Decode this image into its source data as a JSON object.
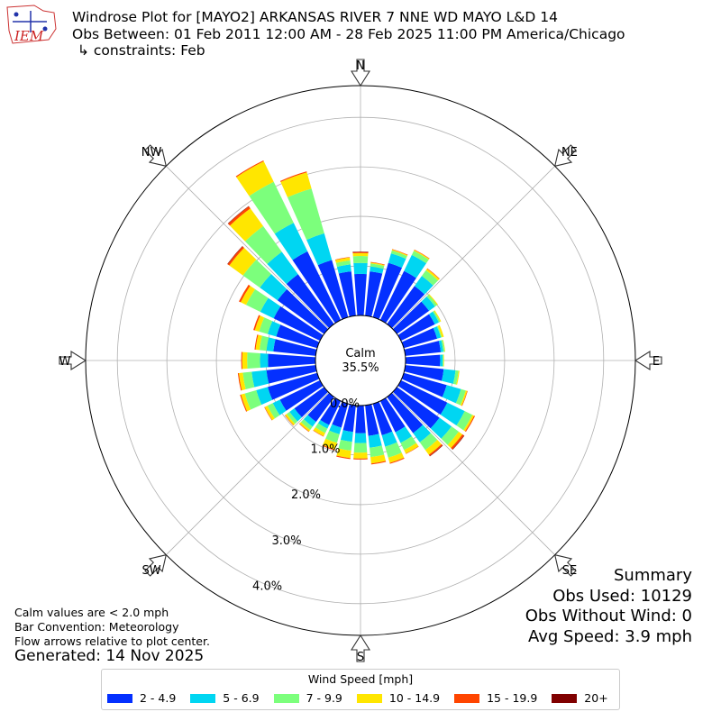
{
  "header": {
    "logo_text": "IEM",
    "title": "Windrose Plot for [MAYO2] ARKANSAS RIVER 7 NNE WD MAYO L&D 14",
    "obs_between": "Obs Between: 01 Feb 2011 12:00 AM - 28 Feb 2025 11:00 PM America/Chicago",
    "constraints": "↳ constraints: Feb"
  },
  "chart_data": {
    "type": "windrose",
    "calm": {
      "label": "Calm",
      "value": "35.5%"
    },
    "radial_ticks": [
      0.0,
      1.0,
      2.0,
      3.0,
      4.0
    ],
    "radial_tick_labels": [
      "0.0%",
      "1.0%",
      "2.0%",
      "3.0%",
      "4.0%"
    ],
    "rmax": 4.64,
    "compass_labels": [
      "N",
      "NE",
      "E",
      "SE",
      "S",
      "SW",
      "W",
      "NW"
    ],
    "legend_title": "Wind Speed [mph]",
    "bins": [
      {
        "label": "2 - 4.9",
        "color": "#0430ff"
      },
      {
        "label": "5 - 6.9",
        "color": "#00d6f2"
      },
      {
        "label": "7 - 9.9",
        "color": "#7cff7c"
      },
      {
        "label": "10 - 14.9",
        "color": "#ffe600"
      },
      {
        "label": "15 - 19.9",
        "color": "#ff4500"
      },
      {
        "label": "20+",
        "color": "#800000"
      }
    ],
    "direction_step_deg": 10,
    "directions_deg": [
      0,
      10,
      20,
      30,
      40,
      50,
      60,
      70,
      80,
      90,
      100,
      110,
      120,
      130,
      140,
      150,
      160,
      170,
      180,
      190,
      200,
      210,
      220,
      230,
      240,
      250,
      260,
      270,
      280,
      290,
      300,
      310,
      320,
      330,
      340,
      350
    ],
    "cumulative_percent": [
      [
        0.84,
        1.06,
        1.2,
        1.26,
        1.28,
        1.29
      ],
      [
        0.9,
        1.0,
        1.06,
        1.08,
        1.09,
        1.09
      ],
      [
        1.14,
        1.34,
        1.4,
        1.42,
        1.43,
        1.43
      ],
      [
        1.1,
        1.46,
        1.55,
        1.57,
        1.58,
        1.58
      ],
      [
        0.95,
        1.2,
        1.34,
        1.38,
        1.39,
        1.39
      ],
      [
        0.8,
        0.95,
        1.0,
        1.02,
        1.02,
        1.02
      ],
      [
        0.76,
        0.85,
        0.88,
        0.9,
        0.9,
        0.9
      ],
      [
        0.7,
        0.78,
        0.8,
        0.84,
        0.84,
        0.84
      ],
      [
        0.72,
        0.77,
        0.8,
        0.81,
        0.81,
        0.81
      ],
      [
        0.7,
        0.75,
        0.77,
        0.78,
        0.78,
        0.78
      ],
      [
        0.78,
        1.02,
        1.08,
        1.1,
        1.1,
        1.1
      ],
      [
        0.9,
        1.2,
        1.3,
        1.33,
        1.34,
        1.34
      ],
      [
        1.04,
        1.43,
        1.6,
        1.64,
        1.66,
        1.66
      ],
      [
        1.06,
        1.36,
        1.54,
        1.63,
        1.67,
        1.68
      ],
      [
        0.9,
        1.13,
        1.32,
        1.44,
        1.47,
        1.48
      ],
      [
        0.7,
        0.94,
        1.1,
        1.18,
        1.19,
        1.19
      ],
      [
        0.66,
        0.9,
        1.13,
        1.24,
        1.26,
        1.26
      ],
      [
        0.62,
        0.86,
        1.05,
        1.18,
        1.2,
        1.2
      ],
      [
        0.56,
        0.76,
        0.95,
        1.07,
        1.09,
        1.09
      ],
      [
        0.54,
        0.74,
        0.92,
        1.07,
        1.09,
        1.09
      ],
      [
        0.5,
        0.64,
        0.82,
        0.96,
        0.98,
        0.98
      ],
      [
        0.54,
        0.62,
        0.72,
        0.79,
        0.8,
        0.8
      ],
      [
        0.62,
        0.74,
        0.82,
        0.86,
        0.87,
        0.87
      ],
      [
        0.74,
        0.86,
        0.93,
        0.97,
        0.98,
        0.98
      ],
      [
        0.9,
        1.06,
        1.18,
        1.24,
        1.25,
        1.25
      ],
      [
        1.04,
        1.28,
        1.52,
        1.6,
        1.62,
        1.62
      ],
      [
        1.0,
        1.3,
        1.48,
        1.56,
        1.58,
        1.58
      ],
      [
        0.96,
        1.12,
        1.38,
        1.48,
        1.5,
        1.5
      ],
      [
        0.86,
        1.0,
        1.14,
        1.22,
        1.24,
        1.24
      ],
      [
        0.86,
        1.04,
        1.22,
        1.31,
        1.34,
        1.34
      ],
      [
        1.04,
        1.34,
        1.66,
        1.78,
        1.82,
        1.82
      ],
      [
        1.16,
        1.6,
        2.02,
        2.36,
        2.4,
        2.41
      ],
      [
        1.24,
        1.8,
        2.44,
        2.88,
        2.93,
        2.94
      ],
      [
        1.54,
        2.18,
        3.1,
        3.56,
        3.58,
        3.58
      ],
      [
        1.2,
        1.76,
        2.7,
        3.04,
        3.06,
        3.06
      ],
      [
        0.9,
        1.04,
        1.12,
        1.18,
        1.19,
        1.19
      ]
    ]
  },
  "summary": {
    "title": "Summary",
    "obs_used": "Obs Used: 10129",
    "obs_without_wind": "Obs Without Wind: 0",
    "avg_speed": "Avg Speed: 3.9 mph"
  },
  "notes": {
    "calm_note": "Calm values are < 2.0 mph",
    "bar_convention": "Bar Convention: Meteorology",
    "flow_arrows": "Flow arrows relative to plot center."
  },
  "generated": "Generated: 14 Nov 2025"
}
